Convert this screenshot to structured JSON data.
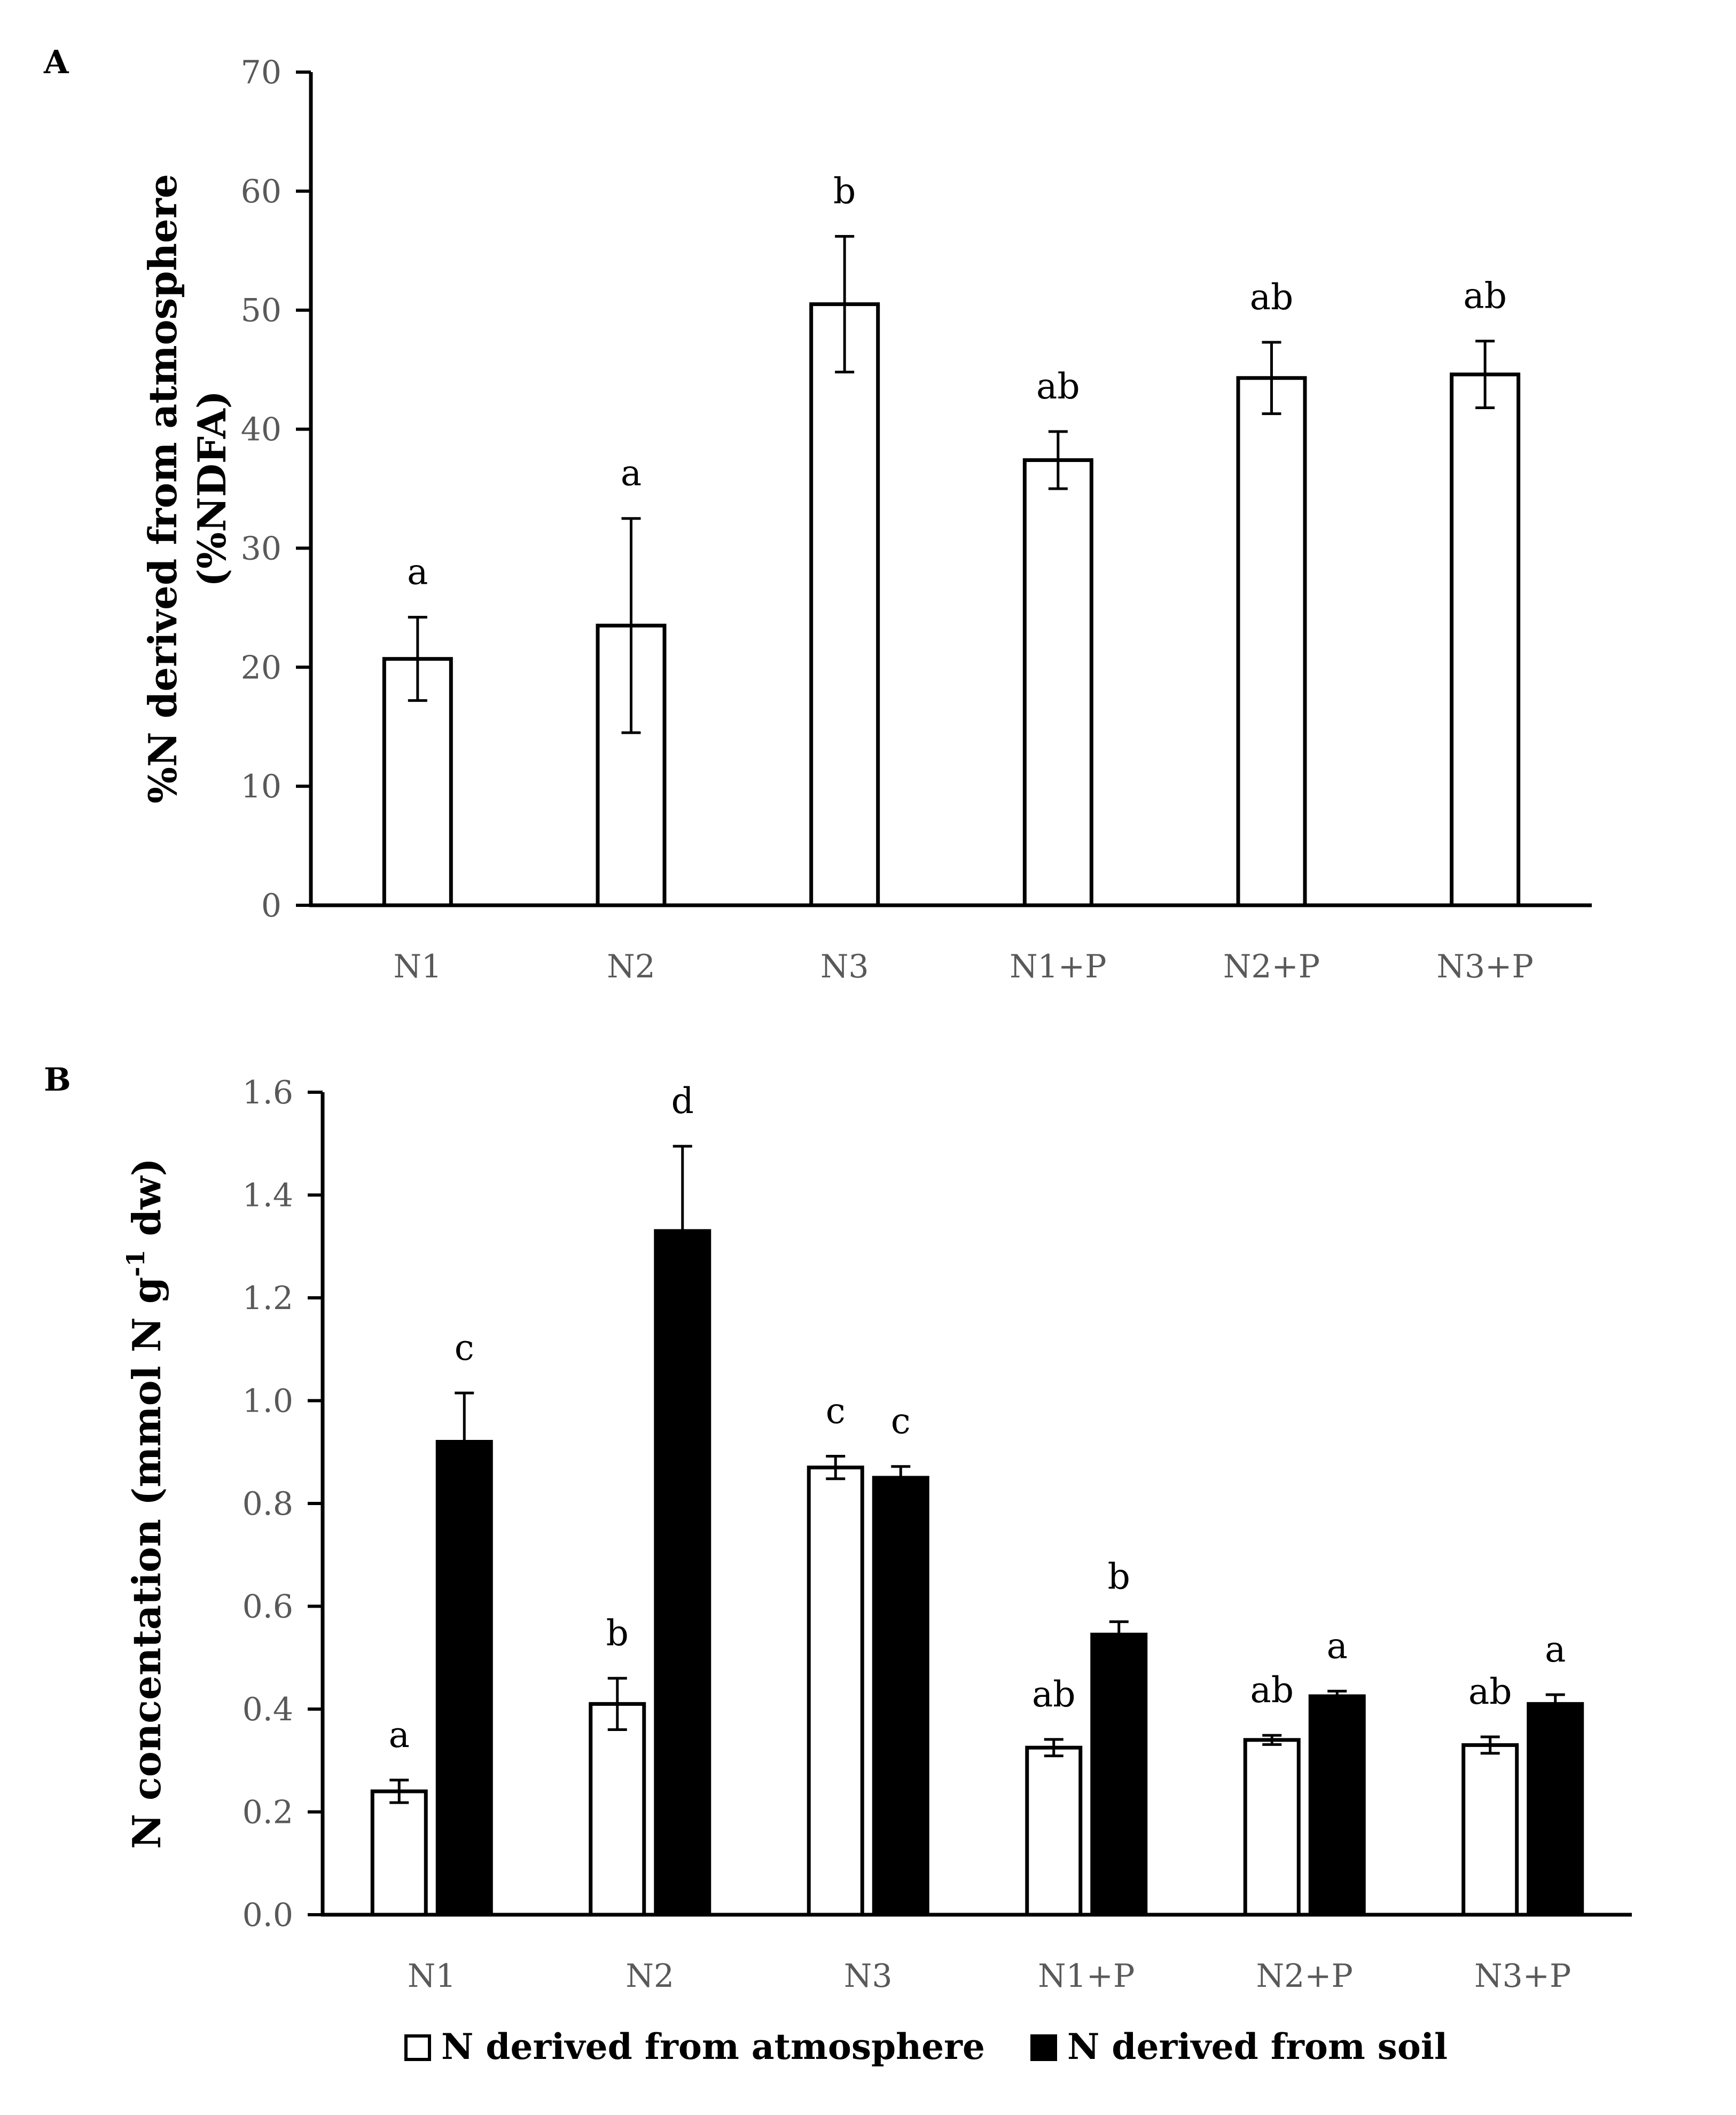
{
  "figure": {
    "panel_a_label": "A",
    "panel_b_label": "B"
  },
  "colors": {
    "atmosphere_fill": "#ffffff",
    "soil_fill": "#000000",
    "axis": "#000000",
    "tick_text": "#595959"
  },
  "legend": {
    "items": [
      {
        "label": "N derived from atmosphere",
        "fill": "#ffffff"
      },
      {
        "label": "N derived from soil",
        "fill": "#000000"
      }
    ],
    "position": "bottom-center"
  },
  "chart_data": [
    {
      "panel": "A",
      "type": "bar",
      "title": "",
      "xlabel": "",
      "ylabel": [
        "%N derived from atmosphere",
        "(%NDFA)"
      ],
      "ylim": [
        0,
        70
      ],
      "yticks": [
        0,
        10,
        20,
        30,
        40,
        50,
        60,
        70
      ],
      "categories": [
        "N1",
        "N2",
        "N3",
        "N1+P",
        "N2+P",
        "N3+P"
      ],
      "series": [
        {
          "values": [
            20.7,
            23.5,
            50.5,
            37.4,
            44.3,
            44.6
          ],
          "errors": [
            3.5,
            9.0,
            5.7,
            2.4,
            3.0,
            2.8
          ],
          "labels": [
            "a",
            "a",
            "b",
            "ab",
            "ab",
            "ab"
          ],
          "fill": "#ffffff"
        }
      ],
      "grid": false,
      "legend": false
    },
    {
      "panel": "B",
      "type": "bar",
      "title": "",
      "xlabel": "",
      "ylabel": "N concentation (mmol N g-1 dw)",
      "ylabel_parts": {
        "before": "N concentation (mmol N g",
        "superscript": "-1",
        "after": " dw)"
      },
      "ylim": [
        0,
        1.6
      ],
      "yticks": [
        "0.0",
        "0.2",
        "0.4",
        "0.6",
        "0.8",
        "1.0",
        "1.2",
        "1.4",
        "1.6"
      ],
      "categories": [
        "N1",
        "N2",
        "N3",
        "N1+P",
        "N2+P",
        "N3+P"
      ],
      "series": [
        {
          "name": "N derived from atmosphere",
          "values": [
            0.24,
            0.41,
            0.87,
            0.325,
            0.34,
            0.33
          ],
          "errors": [
            0.022,
            0.05,
            0.022,
            0.016,
            0.009,
            0.016
          ],
          "labels": [
            "a",
            "b",
            "c",
            "ab",
            "ab",
            "ab"
          ],
          "fill": "#ffffff"
        },
        {
          "name": "N derived from soil",
          "values": [
            0.92,
            1.33,
            0.85,
            0.545,
            0.425,
            0.41
          ],
          "errors": [
            0.095,
            0.165,
            0.022,
            0.025,
            0.01,
            0.018
          ],
          "labels": [
            "c",
            "d",
            "c",
            "b",
            "a",
            "a"
          ],
          "fill": "#000000"
        }
      ],
      "grid": false,
      "legend": true
    }
  ]
}
